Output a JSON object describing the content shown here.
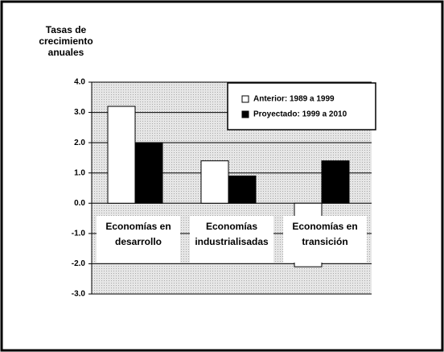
{
  "chart_data": {
    "type": "bar",
    "y_label": "Tasas de crecimiento anuales",
    "categories": [
      "Economías en desarrollo",
      "Economías industrialisadas",
      "Economías en transición"
    ],
    "series": [
      {
        "name": "Anterior: 1989 a 1999",
        "color": "#ffffff",
        "values": [
          3.2,
          1.4,
          -2.1
        ]
      },
      {
        "name": "Proyectado: 1999 a 2010",
        "color": "#000000",
        "values": [
          2.0,
          0.9,
          1.4
        ]
      }
    ],
    "ylim": [
      -3,
      4
    ],
    "yticks": [
      {
        "value": -3,
        "label": "-3.0"
      },
      {
        "value": -2,
        "label": "-2.0"
      },
      {
        "value": -1,
        "label": "-1.0"
      },
      {
        "value": 0,
        "label": "0.0"
      },
      {
        "value": 1,
        "label": "1.0"
      },
      {
        "value": 2,
        "label": "2.0"
      },
      {
        "value": 3,
        "label": "3.0"
      },
      {
        "value": 4,
        "label": "4.0"
      }
    ],
    "grid": true,
    "legend": "upper right"
  }
}
